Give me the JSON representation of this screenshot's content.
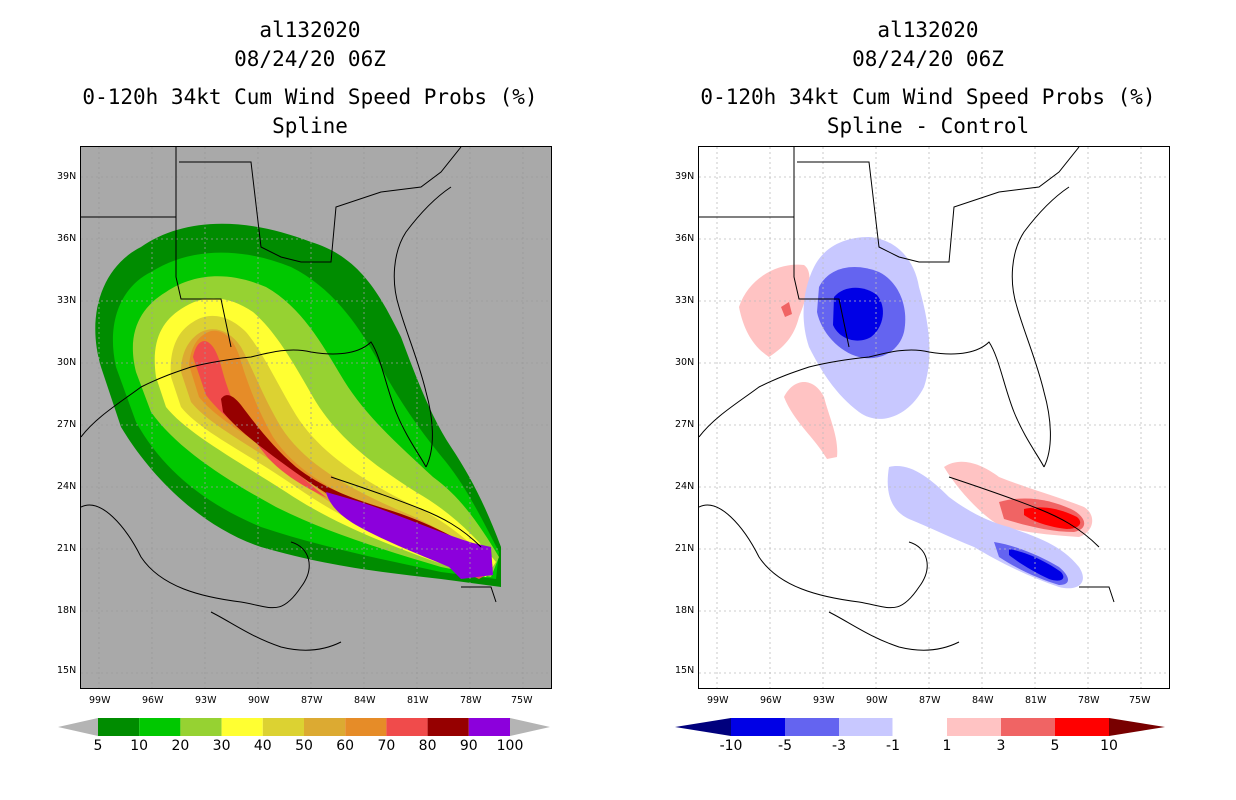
{
  "left_panel": {
    "storm_id": "al132020",
    "datetime": "08/24/20 06Z",
    "product": "0-120h 34kt Cum Wind Speed Probs (%)",
    "subtitle": "Spline",
    "colorbar": {
      "labels": [
        "5",
        "10",
        "20",
        "30",
        "40",
        "50",
        "60",
        "70",
        "80",
        "90",
        "100"
      ],
      "colors": [
        "#008c00",
        "#00c800",
        "#96d232",
        "#ffff32",
        "#dcd232",
        "#dcaa32",
        "#e68c28",
        "#f04b4b",
        "#960000",
        "#8c00dc"
      ],
      "end_color": "#b4b4b4"
    }
  },
  "right_panel": {
    "storm_id": "al132020",
    "datetime": "08/24/20 06Z",
    "product": "0-120h 34kt Cum Wind Speed Probs (%)",
    "subtitle": "Spline - Control",
    "colorbar": {
      "labels": [
        "-10",
        "-5",
        "-3",
        "-1",
        "1",
        "3",
        "5",
        "10"
      ],
      "colors": [
        "#0000e6",
        "#6464f0",
        "#c8c8ff",
        "#ffffff",
        "#ffc3c3",
        "#f06464",
        "#ff0000"
      ],
      "low_color": "#00007d",
      "high_color": "#780000"
    }
  },
  "axes": {
    "lat_ticks": [
      "39N",
      "36N",
      "33N",
      "30N",
      "27N",
      "24N",
      "21N",
      "18N",
      "15N"
    ],
    "lon_ticks": [
      "99W",
      "96W",
      "93W",
      "90W",
      "87W",
      "84W",
      "81W",
      "78W",
      "75W"
    ]
  },
  "colors": {
    "land_bg_left": "#a9a9a9",
    "grid": "#9a9a9a",
    "outline": "#000000"
  }
}
